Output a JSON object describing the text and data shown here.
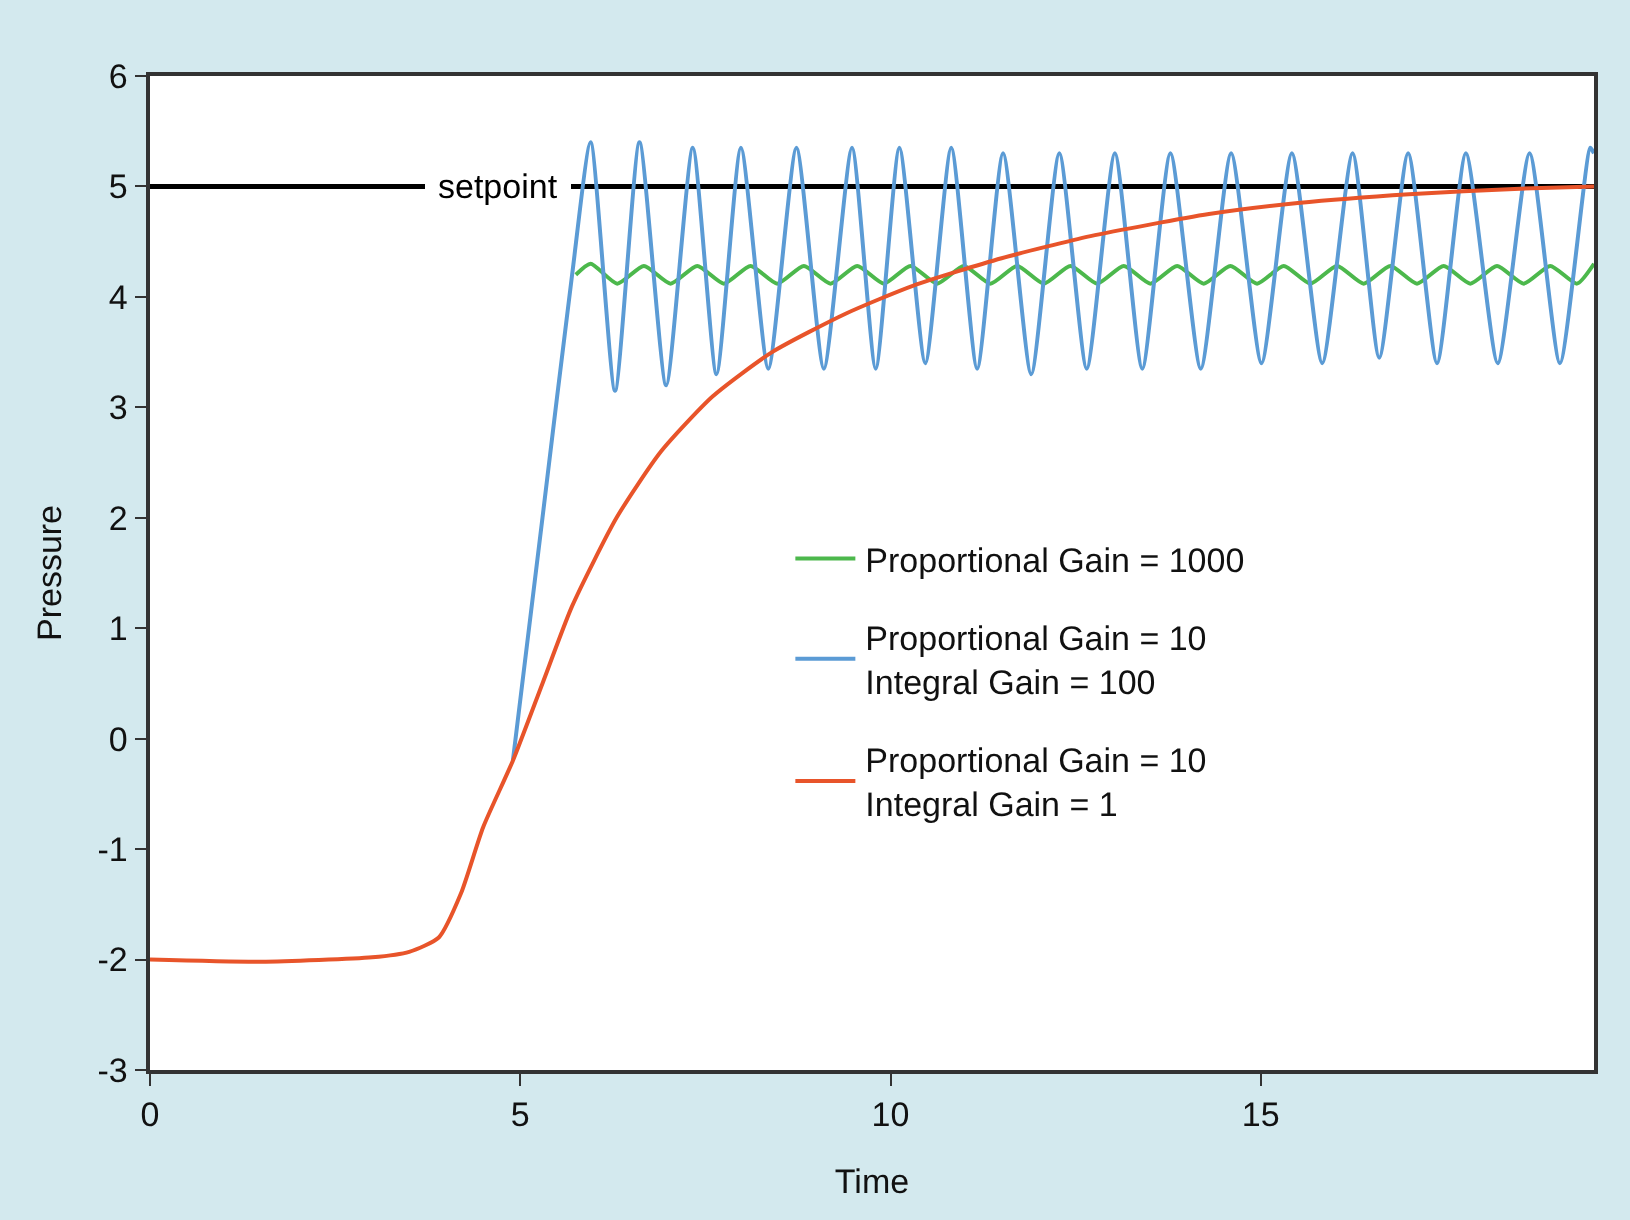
{
  "chart_data": {
    "type": "line",
    "xlabel": "Time",
    "ylabel": "Pressure",
    "xlim": [
      0,
      19.5
    ],
    "xticks": [
      0,
      5,
      10,
      15
    ],
    "ylim": [
      -3,
      6
    ],
    "yticks": [
      -3,
      -2,
      -1,
      0,
      1,
      2,
      3,
      4,
      5,
      6
    ],
    "grid": false,
    "legend": "right",
    "marker": "none",
    "line_style": "solid",
    "ref_lines": [
      {
        "axis": "y",
        "value": 5,
        "label": "setpoint",
        "color": "#000000"
      }
    ],
    "series": [
      {
        "name": "Proportional Gain = 1000",
        "color": "#4cb84c",
        "x": [
          5.75,
          5.95,
          6.31,
          6.67,
          7.03,
          7.39,
          7.75,
          8.11,
          8.47,
          8.83,
          9.19,
          9.55,
          9.91,
          10.27,
          10.63,
          10.99,
          11.35,
          11.71,
          12.07,
          12.43,
          12.79,
          13.15,
          13.51,
          13.87,
          14.23,
          14.59,
          14.95,
          15.31,
          15.67,
          16.03,
          16.39,
          16.75,
          17.11,
          17.47,
          17.83,
          18.19,
          18.55,
          18.91,
          19.27,
          19.5
        ],
        "values": [
          4.2,
          4.3,
          4.12,
          4.28,
          4.12,
          4.28,
          4.12,
          4.28,
          4.12,
          4.28,
          4.12,
          4.28,
          4.12,
          4.28,
          4.12,
          4.28,
          4.12,
          4.28,
          4.12,
          4.28,
          4.12,
          4.28,
          4.12,
          4.28,
          4.12,
          4.28,
          4.12,
          4.28,
          4.12,
          4.28,
          4.12,
          4.28,
          4.12,
          4.28,
          4.12,
          4.28,
          4.12,
          4.28,
          4.12,
          4.3
        ]
      },
      {
        "name": "Proportional Gain = 10\nIntegral Gain = 100",
        "color": "#5b9bd5",
        "x": [
          4.9,
          5.3,
          5.7,
          5.95,
          6.28,
          6.61,
          6.97,
          7.33,
          7.65,
          7.98,
          8.35,
          8.73,
          9.1,
          9.48,
          9.8,
          10.12,
          10.47,
          10.82,
          11.17,
          11.52,
          11.9,
          12.28,
          12.65,
          13.03,
          13.4,
          13.78,
          14.19,
          14.6,
          15.01,
          15.42,
          15.83,
          16.24,
          16.6,
          16.99,
          17.38,
          17.77,
          18.2,
          18.63,
          19.04,
          19.45,
          19.5
        ],
        "values": [
          -0.2,
          2.0,
          4.2,
          5.4,
          3.15,
          5.4,
          3.2,
          5.35,
          3.3,
          5.35,
          3.35,
          5.35,
          3.35,
          5.35,
          3.35,
          5.35,
          3.4,
          5.35,
          3.35,
          5.3,
          3.3,
          5.3,
          3.35,
          5.3,
          3.35,
          5.3,
          3.35,
          5.3,
          3.4,
          5.3,
          3.4,
          5.3,
          3.45,
          5.3,
          3.4,
          5.3,
          3.4,
          5.3,
          3.4,
          5.35,
          5.3
        ]
      },
      {
        "name": "Proportional Gain = 10\nIntegral Gain = 1",
        "color": "#e8542a",
        "x": [
          0,
          1.5,
          3,
          3.5,
          3.9,
          4.2,
          4.5,
          4.9,
          5.3,
          5.7,
          6.3,
          6.9,
          7.6,
          8.4,
          9.4,
          10.3,
          11.5,
          12.7,
          14.3,
          15.5,
          17,
          18.5,
          19.5
        ],
        "values": [
          -2,
          -2.02,
          -1.98,
          -1.93,
          -1.8,
          -1.4,
          -0.8,
          -0.2,
          0.5,
          1.2,
          2,
          2.6,
          3.1,
          3.5,
          3.85,
          4.1,
          4.35,
          4.55,
          4.75,
          4.85,
          4.93,
          4.98,
          5
        ]
      }
    ]
  }
}
